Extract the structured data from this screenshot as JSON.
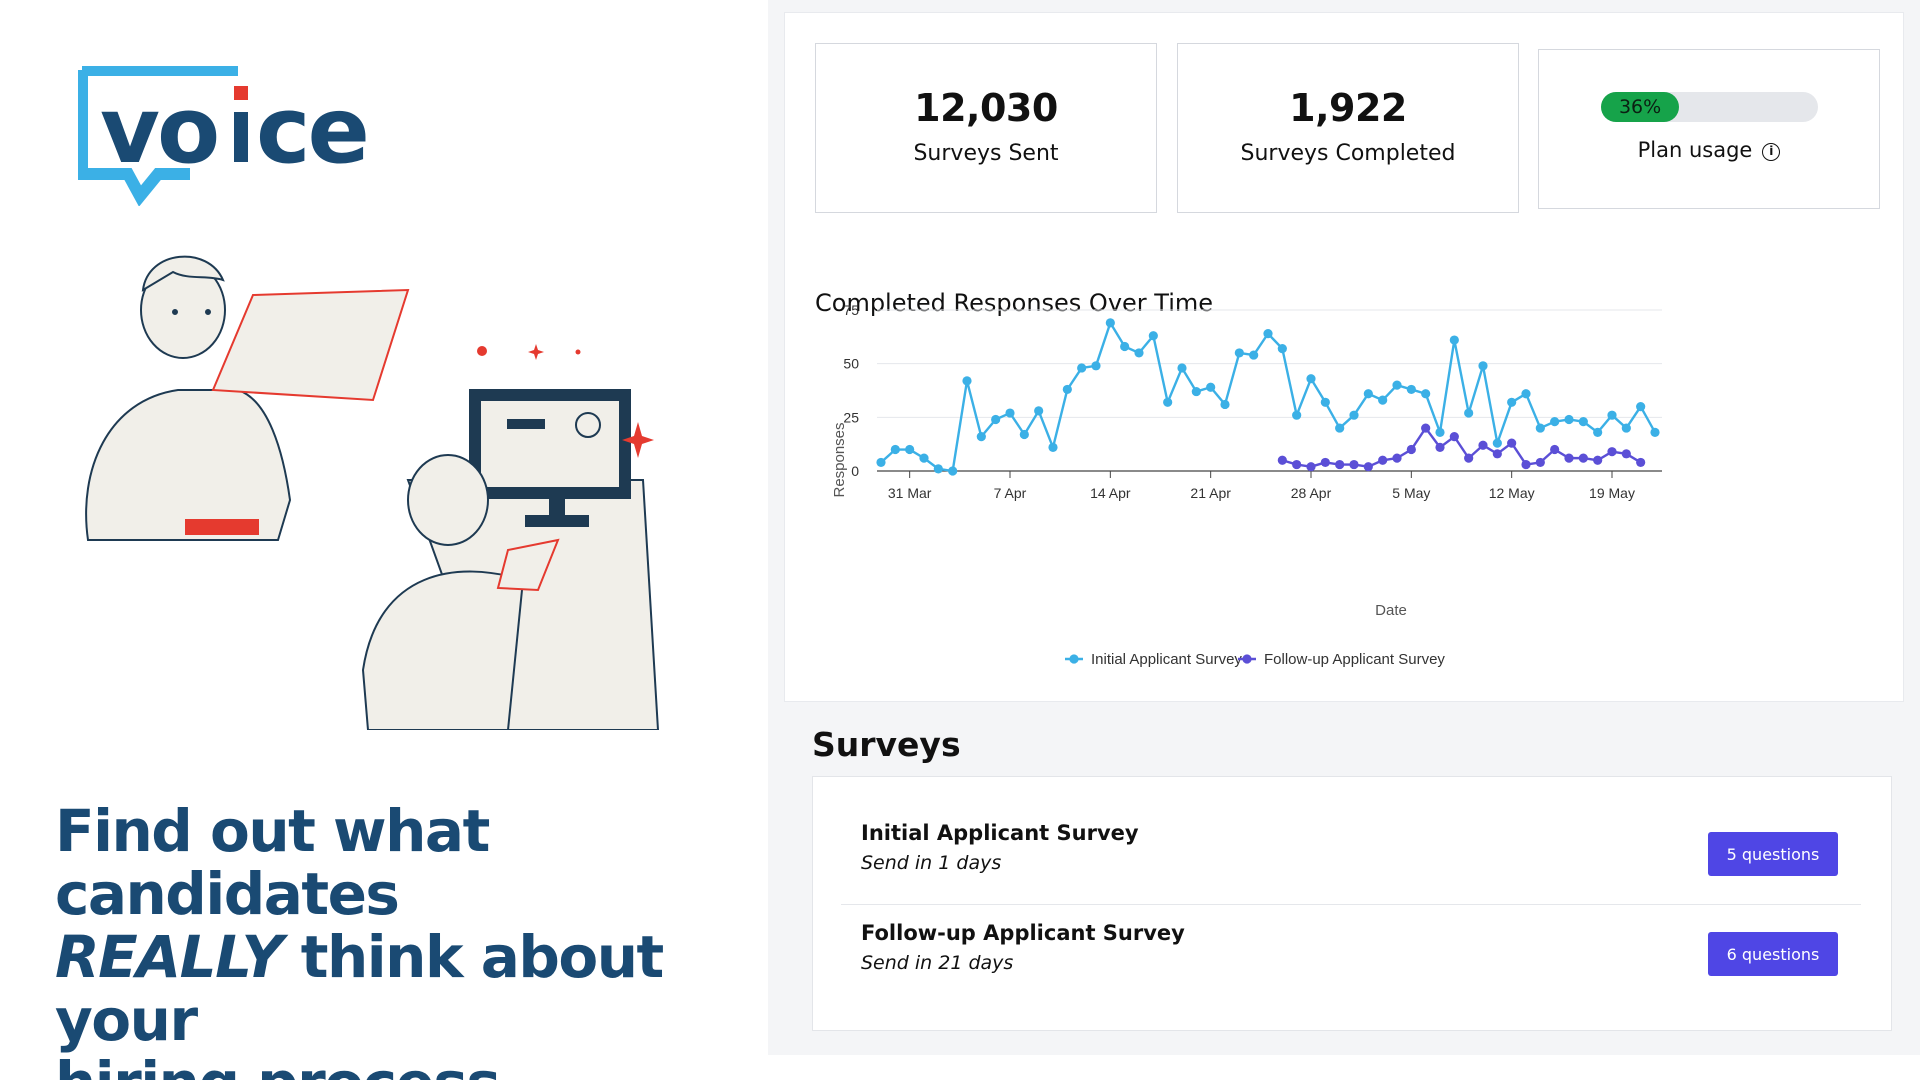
{
  "brand": {
    "logo_text": "voice",
    "colors": {
      "navy": "#1a4a73",
      "cyan": "#3bb0e6",
      "red": "#e53a2f"
    }
  },
  "headline": {
    "line1": "Find out what candidates",
    "emphasis": "REALLY",
    "line2_rest": " think about your",
    "line3": "hiring process."
  },
  "stats": {
    "sent": {
      "value": "12,030",
      "label": "Surveys Sent"
    },
    "completed": {
      "value": "1,922",
      "label": "Surveys Completed"
    },
    "usage": {
      "percent_label": "36%",
      "percent": 36,
      "label": "Plan usage",
      "info_icon": "info-icon"
    }
  },
  "chart_data": {
    "type": "line",
    "title": "Completed Responses Over Time",
    "xlabel": "Date",
    "ylabel": "Responses",
    "ylim": [
      0,
      75
    ],
    "yticks": [
      0,
      25,
      50,
      75
    ],
    "x_tick_labels": [
      "31 Mar",
      "7 Apr",
      "14 Apr",
      "21 Apr",
      "28 Apr",
      "5 May",
      "12 May",
      "19 May"
    ],
    "x_tick_day_index": [
      2,
      9,
      16,
      23,
      30,
      37,
      44,
      51
    ],
    "x_day_count": 54,
    "series": [
      {
        "name": "Initial Applicant Survey",
        "color": "#3bb0e6",
        "start_day": 0,
        "values": [
          4,
          10,
          10,
          6,
          1,
          0,
          42,
          16,
          24,
          27,
          17,
          28,
          11,
          38,
          48,
          49,
          69,
          58,
          55,
          63,
          32,
          48,
          37,
          39,
          31,
          55,
          54,
          64,
          57,
          26,
          43,
          32,
          20,
          26,
          36,
          33,
          40,
          38,
          36,
          18,
          61,
          27,
          49,
          13,
          32,
          36,
          20,
          23,
          24,
          23,
          18,
          26,
          20,
          30,
          18
        ]
      },
      {
        "name": "Follow-up Applicant Survey",
        "color": "#5b4fd6",
        "start_day": 28,
        "values": [
          5,
          3,
          2,
          4,
          3,
          3,
          2,
          5,
          6,
          10,
          20,
          11,
          16,
          6,
          12,
          8,
          13,
          3,
          4,
          10,
          6,
          6,
          5,
          9,
          8,
          4
        ]
      }
    ],
    "legend_position": "bottom-center"
  },
  "surveys": {
    "heading": "Surveys",
    "items": [
      {
        "name": "Initial Applicant Survey",
        "schedule": "Send in 1 days",
        "button": "5 questions"
      },
      {
        "name": "Follow-up Applicant Survey",
        "schedule": "Send in 21 days",
        "button": "6 questions"
      }
    ]
  }
}
